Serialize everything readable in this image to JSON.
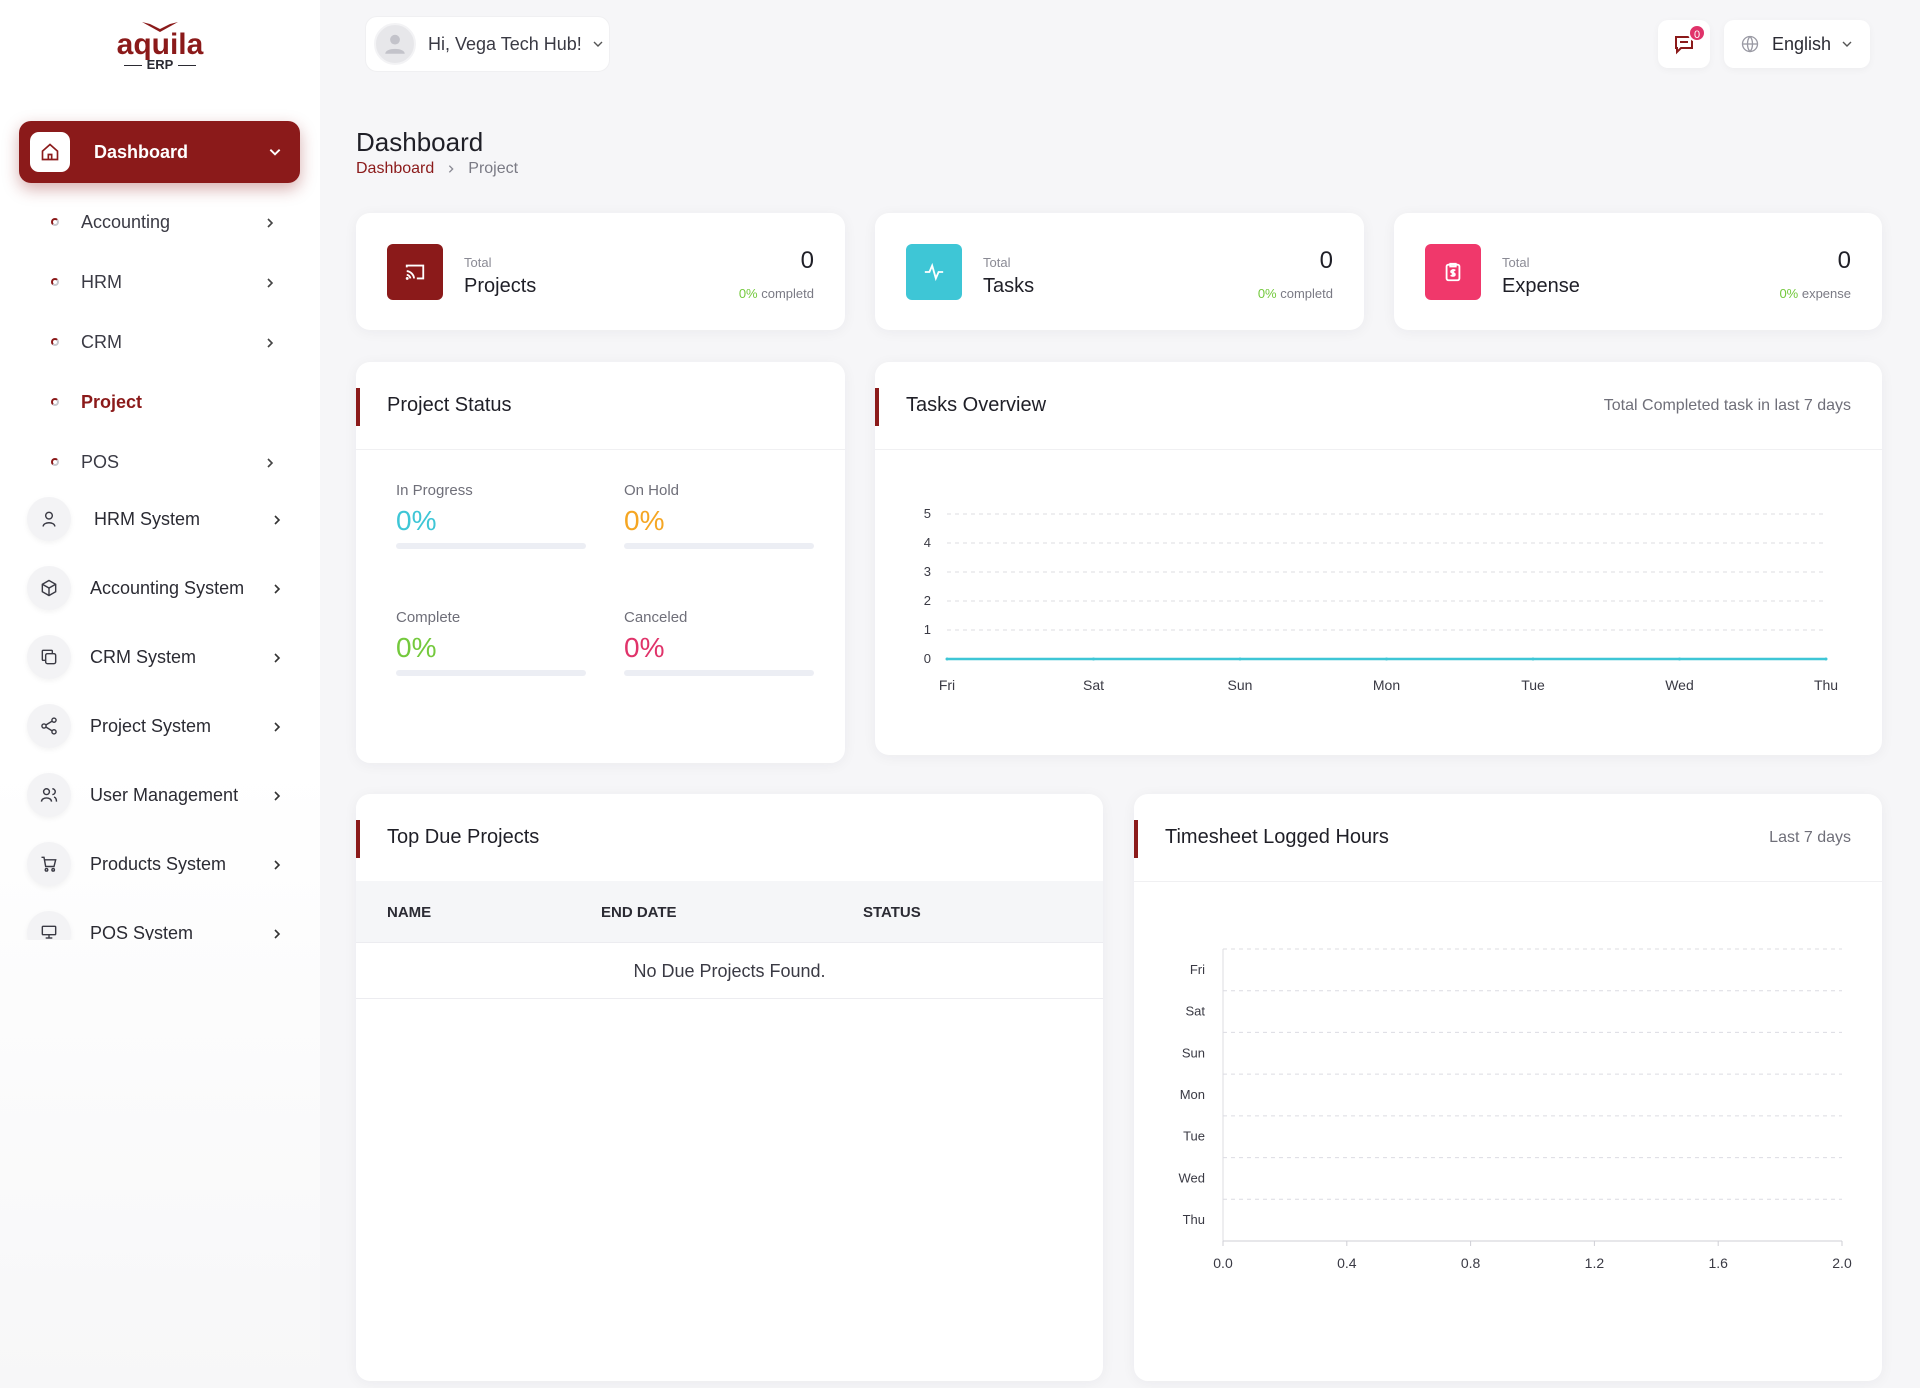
{
  "brand": {
    "name": "aquila",
    "sub": "ERP"
  },
  "sidebar": {
    "active": {
      "label": "Dashboard"
    },
    "sub_items": [
      {
        "label": "Accounting",
        "has_arrow": true
      },
      {
        "label": "HRM",
        "has_arrow": true
      },
      {
        "label": "CRM",
        "has_arrow": true
      },
      {
        "label": "Project",
        "has_arrow": false,
        "active": true
      },
      {
        "label": "POS",
        "has_arrow": true
      }
    ],
    "systems": [
      {
        "label": "HRM System",
        "icon": "user-icon"
      },
      {
        "label": "Accounting System",
        "icon": "box-icon"
      },
      {
        "label": "CRM System",
        "icon": "copy-icon"
      },
      {
        "label": "Project System",
        "icon": "share-icon"
      },
      {
        "label": "User Management",
        "icon": "users-icon"
      },
      {
        "label": "Products System",
        "icon": "cart-icon"
      },
      {
        "label": "POS System",
        "icon": "pos-icon"
      }
    ]
  },
  "topbar": {
    "greeting": "Hi, Vega Tech Hub!",
    "notification_count": "0",
    "language": "English"
  },
  "page": {
    "title": "Dashboard",
    "breadcrumb": [
      "Dashboard",
      "Project"
    ]
  },
  "stats": [
    {
      "small": "Total",
      "big": "Projects",
      "value": "0",
      "pct": "0%",
      "pct_suffix": " completd",
      "color": "#8b1a1a",
      "icon": "cast-icon"
    },
    {
      "small": "Total",
      "big": "Tasks",
      "value": "0",
      "pct": "0%",
      "pct_suffix": " completd",
      "color": "#3ec6d6",
      "icon": "pulse-icon"
    },
    {
      "small": "Total",
      "big": "Expense",
      "value": "0",
      "pct": "0%",
      "pct_suffix": " expense",
      "color": "#f0386b",
      "icon": "receipt-icon"
    }
  ],
  "project_status": {
    "title": "Project Status",
    "items": [
      {
        "name": "In Progress",
        "value": "0%",
        "color": "#3ec6d6",
        "progress": 0
      },
      {
        "name": "On Hold",
        "value": "0%",
        "color": "#f5a623",
        "progress": 0
      },
      {
        "name": "Complete",
        "value": "0%",
        "color": "#74c93d",
        "progress": 0
      },
      {
        "name": "Canceled",
        "value": "0%",
        "color": "#e0336a",
        "progress": 0
      }
    ]
  },
  "tasks_overview": {
    "title": "Tasks Overview",
    "right_label": "Total Completed task in last 7 days"
  },
  "top_due": {
    "title": "Top Due Projects",
    "columns": [
      "NAME",
      "END DATE",
      "STATUS"
    ],
    "empty": "No Due Projects Found."
  },
  "timesheet": {
    "title": "Timesheet Logged Hours",
    "right_label": "Last 7 days"
  },
  "chart_data": [
    {
      "type": "line",
      "x": [
        "Fri",
        "Sat",
        "Sun",
        "Mon",
        "Tue",
        "Wed",
        "Thu"
      ],
      "series": [
        {
          "values": [
            0,
            0,
            0,
            0,
            0,
            0,
            0
          ],
          "color": "#3ec6d6"
        }
      ],
      "yticks": [
        "0",
        "1",
        "2",
        "3",
        "4",
        "5"
      ],
      "ylim": [
        0,
        5
      ],
      "grid": true
    },
    {
      "type": "bar",
      "orientation": "horizontal",
      "categories": [
        "Fri",
        "Sat",
        "Sun",
        "Mon",
        "Tue",
        "Wed",
        "Thu"
      ],
      "values": [
        0,
        0,
        0,
        0,
        0,
        0,
        0
      ],
      "xticks": [
        "0.0",
        "0.4",
        "0.8",
        "1.2",
        "1.6",
        "2.0"
      ],
      "xlim": [
        0,
        2
      ],
      "grid": true
    }
  ]
}
